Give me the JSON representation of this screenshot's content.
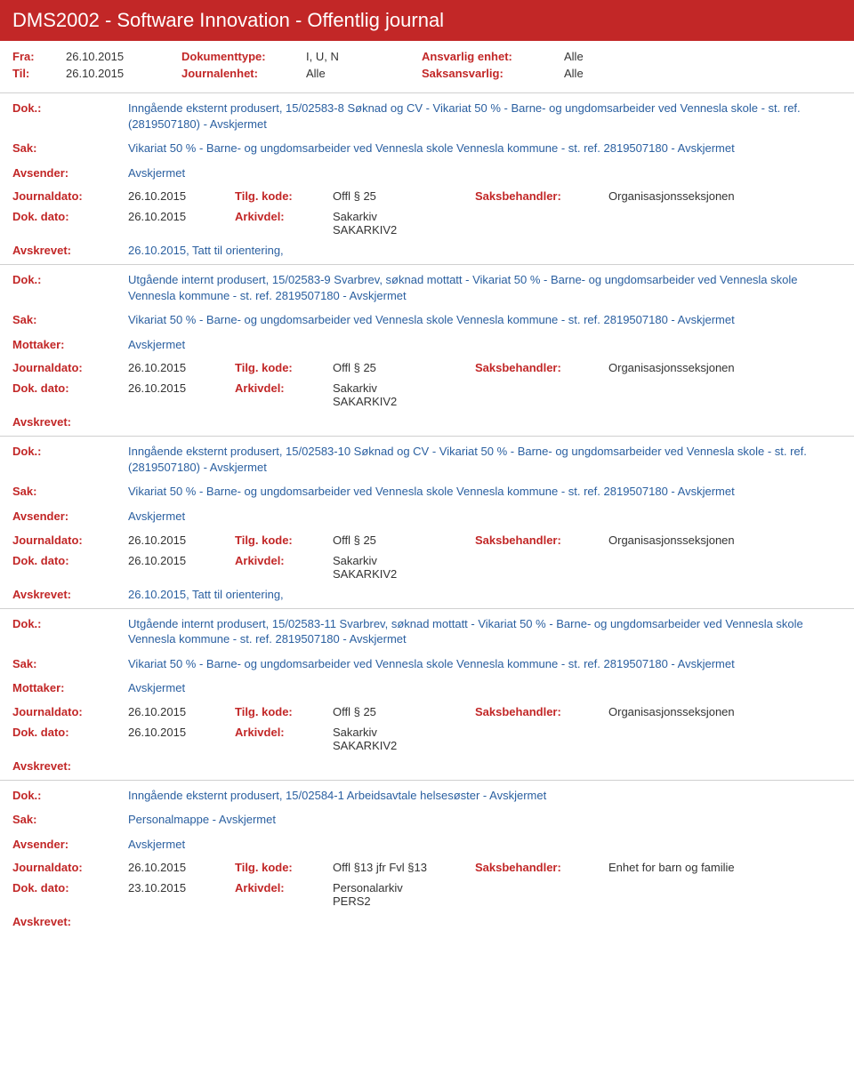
{
  "header": {
    "title": "DMS2002 - Software Innovation - Offentlig journal"
  },
  "filters": {
    "fra_label": "Fra:",
    "fra_value": "26.10.2015",
    "til_label": "Til:",
    "til_value": "26.10.2015",
    "dokumenttype_label": "Dokumenttype:",
    "dokumenttype_value": "I, U, N",
    "journalenhet_label": "Journalenhet:",
    "journalenhet_value": "Alle",
    "ansvarlig_label": "Ansvarlig enhet:",
    "ansvarlig_value": "Alle",
    "saksansvarlig_label": "Saksansvarlig:",
    "saksansvarlig_value": "Alle"
  },
  "labels": {
    "dok": "Dok.:",
    "sak": "Sak:",
    "avsender": "Avsender:",
    "mottaker": "Mottaker:",
    "journaldato": "Journaldato:",
    "tilg_kode": "Tilg. kode:",
    "saksbehandler": "Saksbehandler:",
    "dok_dato": "Dok. dato:",
    "arkivdel": "Arkivdel:",
    "avskrevet": "Avskrevet:"
  },
  "entries": [
    {
      "dok": "Inngående eksternt produsert, 15/02583-8 Søknad og CV - Vikariat 50 % - Barne- og ungdomsarbeider ved Vennesla skole - st. ref. (2819507180) - Avskjermet",
      "sak": "Vikariat 50 % - Barne- og ungdomsarbeider ved Vennesla skole Vennesla kommune - st. ref. 2819507180 - Avskjermet",
      "party_label": "Avsender:",
      "party_value": "Avskjermet",
      "journaldato": "26.10.2015",
      "tilg_kode": "Offl § 25",
      "saksbehandler": "Organisasjonsseksjonen",
      "dok_dato": "26.10.2015",
      "arkivdel1": "Sakarkiv",
      "arkivdel2": "SAKARKIV2",
      "avskrevet": "26.10.2015, Tatt til orientering,"
    },
    {
      "dok": "Utgående internt produsert, 15/02583-9 Svarbrev, søknad mottatt - Vikariat 50 % - Barne- og ungdomsarbeider ved Vennesla skole Vennesla kommune - st. ref. 2819507180 - Avskjermet",
      "sak": "Vikariat 50 % - Barne- og ungdomsarbeider ved Vennesla skole Vennesla kommune - st. ref. 2819507180 - Avskjermet",
      "party_label": "Mottaker:",
      "party_value": "Avskjermet",
      "journaldato": "26.10.2015",
      "tilg_kode": "Offl § 25",
      "saksbehandler": "Organisasjonsseksjonen",
      "dok_dato": "26.10.2015",
      "arkivdel1": "Sakarkiv",
      "arkivdel2": "SAKARKIV2",
      "avskrevet": ""
    },
    {
      "dok": "Inngående eksternt produsert, 15/02583-10 Søknad og CV - Vikariat 50 % - Barne- og ungdomsarbeider ved Vennesla skole - st. ref. (2819507180) - Avskjermet",
      "sak": "Vikariat 50 % - Barne- og ungdomsarbeider ved Vennesla skole Vennesla kommune - st. ref. 2819507180 - Avskjermet",
      "party_label": "Avsender:",
      "party_value": "Avskjermet",
      "journaldato": "26.10.2015",
      "tilg_kode": "Offl § 25",
      "saksbehandler": "Organisasjonsseksjonen",
      "dok_dato": "26.10.2015",
      "arkivdel1": "Sakarkiv",
      "arkivdel2": "SAKARKIV2",
      "avskrevet": "26.10.2015, Tatt til orientering,"
    },
    {
      "dok": "Utgående internt produsert, 15/02583-11 Svarbrev, søknad mottatt - Vikariat 50 % - Barne- og ungdomsarbeider ved Vennesla skole Vennesla kommune - st. ref. 2819507180 - Avskjermet",
      "sak": "Vikariat 50 % - Barne- og ungdomsarbeider ved Vennesla skole Vennesla kommune - st. ref. 2819507180 - Avskjermet",
      "party_label": "Mottaker:",
      "party_value": "Avskjermet",
      "journaldato": "26.10.2015",
      "tilg_kode": "Offl § 25",
      "saksbehandler": "Organisasjonsseksjonen",
      "dok_dato": "26.10.2015",
      "arkivdel1": "Sakarkiv",
      "arkivdel2": "SAKARKIV2",
      "avskrevet": ""
    },
    {
      "dok": "Inngående eksternt produsert, 15/02584-1 Arbeidsavtale helsesøster - Avskjermet",
      "sak": "Personalmappe - Avskjermet",
      "party_label": "Avsender:",
      "party_value": "Avskjermet",
      "journaldato": "26.10.2015",
      "tilg_kode": "Offl §13 jfr Fvl §13",
      "saksbehandler": "Enhet for barn og familie",
      "dok_dato": "23.10.2015",
      "arkivdel1": "Personalarkiv",
      "arkivdel2": "PERS2",
      "avskrevet": ""
    }
  ]
}
